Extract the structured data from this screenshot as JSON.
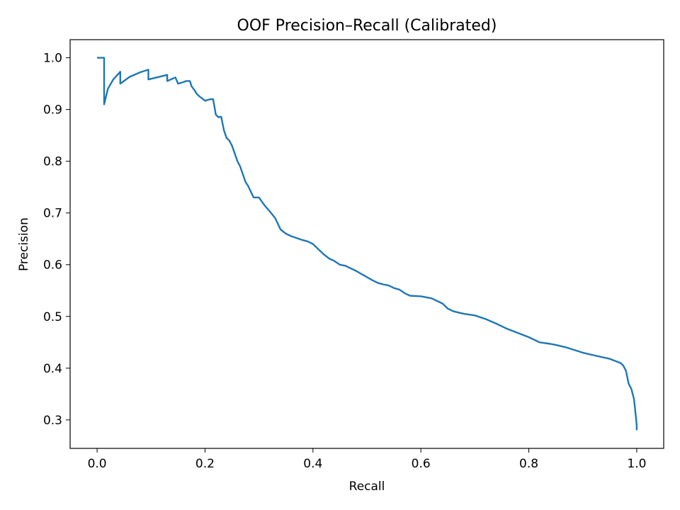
{
  "chart_data": {
    "type": "line",
    "title": "OOF Precision–Recall (Calibrated)",
    "xlabel": "Recall",
    "ylabel": "Precision",
    "xlim": [
      -0.05,
      1.05
    ],
    "ylim": [
      0.245,
      1.035
    ],
    "xticks": [
      "0.0",
      "0.2",
      "0.4",
      "0.6",
      "0.8",
      "1.0"
    ],
    "xtick_values": [
      0.0,
      0.2,
      0.4,
      0.6,
      0.8,
      1.0
    ],
    "yticks": [
      "0.3",
      "0.4",
      "0.5",
      "0.6",
      "0.7",
      "0.8",
      "0.9",
      "1.0"
    ],
    "ytick_values": [
      0.3,
      0.4,
      0.5,
      0.6,
      0.7,
      0.8,
      0.9,
      1.0
    ],
    "grid": false,
    "series": [
      {
        "color": "#1f77b4",
        "x": [
          0.0,
          0.013,
          0.013,
          0.02,
          0.03,
          0.043,
          0.043,
          0.06,
          0.08,
          0.095,
          0.095,
          0.13,
          0.13,
          0.145,
          0.15,
          0.16,
          0.165,
          0.172,
          0.175,
          0.18,
          0.185,
          0.19,
          0.2,
          0.21,
          0.215,
          0.22,
          0.225,
          0.23,
          0.235,
          0.24,
          0.245,
          0.25,
          0.255,
          0.26,
          0.265,
          0.27,
          0.275,
          0.28,
          0.29,
          0.3,
          0.31,
          0.32,
          0.33,
          0.34,
          0.35,
          0.36,
          0.38,
          0.39,
          0.4,
          0.41,
          0.42,
          0.43,
          0.44,
          0.45,
          0.46,
          0.48,
          0.49,
          0.5,
          0.51,
          0.52,
          0.53,
          0.54,
          0.55,
          0.56,
          0.57,
          0.58,
          0.6,
          0.62,
          0.64,
          0.65,
          0.66,
          0.68,
          0.7,
          0.72,
          0.74,
          0.76,
          0.78,
          0.8,
          0.82,
          0.84,
          0.85,
          0.87,
          0.9,
          0.92,
          0.95,
          0.97,
          0.975,
          0.98,
          0.985,
          0.99,
          0.995,
          0.998,
          1.0,
          1.0
        ],
        "y": [
          1.0,
          1.0,
          0.91,
          0.94,
          0.958,
          0.973,
          0.95,
          0.963,
          0.972,
          0.977,
          0.958,
          0.967,
          0.955,
          0.962,
          0.95,
          0.953,
          0.955,
          0.955,
          0.945,
          0.938,
          0.93,
          0.925,
          0.917,
          0.92,
          0.92,
          0.89,
          0.885,
          0.886,
          0.86,
          0.845,
          0.84,
          0.83,
          0.815,
          0.8,
          0.79,
          0.775,
          0.76,
          0.752,
          0.73,
          0.73,
          0.715,
          0.703,
          0.69,
          0.668,
          0.66,
          0.655,
          0.648,
          0.645,
          0.64,
          0.63,
          0.62,
          0.612,
          0.607,
          0.6,
          0.598,
          0.588,
          0.582,
          0.576,
          0.57,
          0.565,
          0.562,
          0.56,
          0.555,
          0.552,
          0.545,
          0.54,
          0.539,
          0.535,
          0.525,
          0.515,
          0.51,
          0.505,
          0.502,
          0.495,
          0.486,
          0.476,
          0.468,
          0.46,
          0.45,
          0.447,
          0.445,
          0.44,
          0.43,
          0.425,
          0.418,
          0.41,
          0.405,
          0.395,
          0.37,
          0.36,
          0.34,
          0.31,
          0.29,
          0.28
        ]
      }
    ]
  }
}
